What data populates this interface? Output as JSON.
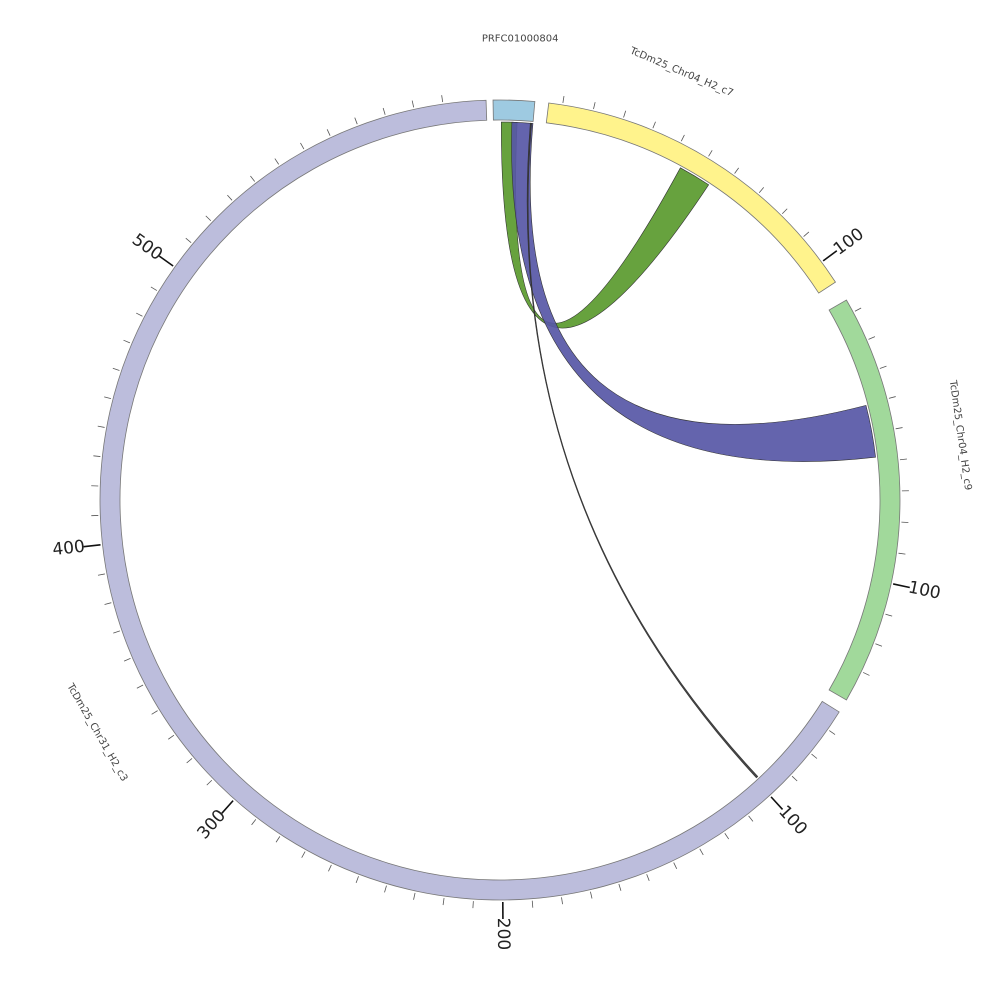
{
  "chart_data": {
    "type": "chord",
    "segments": [
      {
        "name": "PRFC01000804",
        "color": "#9ecae1",
        "length": 8,
        "tick_labels": []
      },
      {
        "name": "TcDm25_Chr04_H2_c7",
        "color": "#fff38c",
        "length": 140,
        "tick_labels": [
          "100"
        ]
      },
      {
        "name": "TcDm25_Chr04_H2_c9",
        "color": "#a1d99b",
        "length": 130,
        "tick_labels": [
          "100"
        ]
      },
      {
        "name": "TcDm25_Chr31_H2_c3",
        "color": "#bcbddc",
        "length": 560,
        "tick_labels": [
          "100",
          "200",
          "300",
          "400",
          "500"
        ]
      }
    ],
    "links": [
      {
        "source": "PRFC01000804",
        "target": "TcDm25_Chr04_H2_c7",
        "color": "#5a9a2e"
      },
      {
        "source": "PRFC01000804",
        "target": "TcDm25_Chr04_H2_c9",
        "color": "#5757a6"
      },
      {
        "source": "PRFC01000804",
        "target": "TcDm25_Chr31_H2_c3",
        "color": "#333333"
      }
    ]
  }
}
